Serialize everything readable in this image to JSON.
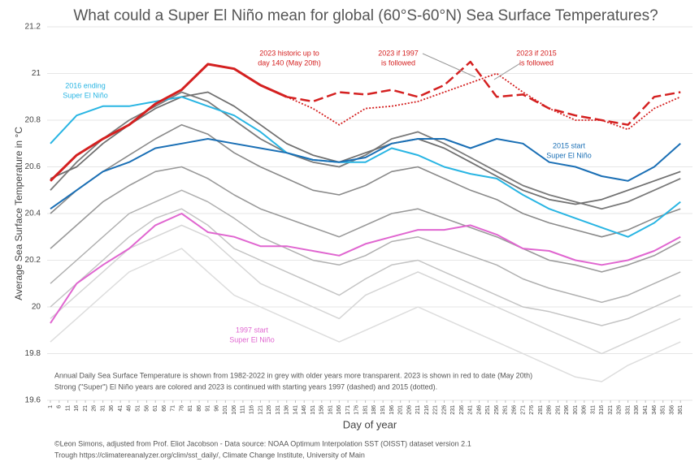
{
  "chart_data": {
    "type": "line",
    "title": "What could a Super El Niño mean for global (60°S-60°N) Sea Surface Temperatures?",
    "x_label": "Day of year",
    "y_label": "Average Sea Surface Temperature in °C",
    "x": [
      1,
      16,
      31,
      46,
      61,
      76,
      91,
      106,
      121,
      136,
      151,
      166,
      181,
      196,
      211,
      226,
      241,
      256,
      271,
      286,
      301,
      316,
      331,
      346,
      361
    ],
    "xlim": [
      1,
      366
    ],
    "xticks": [
      1,
      6,
      11,
      16,
      21,
      26,
      31,
      36,
      41,
      46,
      51,
      56,
      61,
      66,
      71,
      76,
      81,
      86,
      91,
      96,
      101,
      106,
      111,
      116,
      121,
      126,
      131,
      136,
      141,
      146,
      151,
      156,
      161,
      166,
      171,
      176,
      181,
      186,
      191,
      196,
      201,
      206,
      211,
      216,
      221,
      226,
      231,
      236,
      241,
      246,
      251,
      256,
      261,
      266,
      271,
      276,
      281,
      286,
      291,
      296,
      301,
      306,
      311,
      316,
      321,
      326,
      331,
      336,
      341,
      346,
      351,
      356,
      361
    ],
    "ylim": [
      19.6,
      21.2
    ],
    "yticks": [
      19.6,
      19.8,
      20,
      20.2,
      20.4,
      20.6,
      20.8,
      21,
      21.2
    ],
    "grid": true,
    "series": [
      {
        "color": "#dddddd",
        "width": 1.5,
        "values": [
          19.85,
          19.95,
          20.05,
          20.15,
          20.2,
          20.25,
          20.15,
          20.05,
          20.0,
          19.95,
          19.9,
          19.85,
          19.9,
          19.95,
          20.0,
          19.95,
          19.9,
          19.85,
          19.8,
          19.75,
          19.7,
          19.68,
          19.75,
          19.8,
          19.85
        ]
      },
      {
        "color": "#d5d5d5",
        "width": 1.5,
        "values": [
          19.95,
          20.05,
          20.15,
          20.25,
          20.3,
          20.35,
          20.3,
          20.2,
          20.1,
          20.05,
          20.0,
          19.95,
          20.05,
          20.1,
          20.15,
          20.1,
          20.05,
          20.0,
          19.95,
          19.9,
          19.85,
          19.8,
          19.85,
          19.9,
          19.95
        ]
      },
      {
        "color": "#c4c4c4",
        "width": 1.5,
        "values": [
          20.0,
          20.1,
          20.2,
          20.3,
          20.38,
          20.42,
          20.35,
          20.25,
          20.2,
          20.15,
          20.1,
          20.05,
          20.12,
          20.18,
          20.2,
          20.15,
          20.1,
          20.05,
          20.0,
          19.98,
          19.95,
          19.92,
          19.95,
          20.0,
          20.05
        ]
      },
      {
        "color": "#b0b0b0",
        "width": 1.5,
        "values": [
          20.1,
          20.2,
          20.3,
          20.4,
          20.45,
          20.5,
          20.45,
          20.38,
          20.3,
          20.25,
          20.2,
          20.18,
          20.22,
          20.28,
          20.3,
          20.26,
          20.22,
          20.18,
          20.12,
          20.08,
          20.05,
          20.02,
          20.05,
          20.1,
          20.15
        ]
      },
      {
        "color": "#9a9a9a",
        "width": 1.6,
        "values": [
          20.25,
          20.35,
          20.45,
          20.52,
          20.58,
          20.6,
          20.55,
          20.48,
          20.42,
          20.38,
          20.34,
          20.3,
          20.35,
          20.4,
          20.42,
          20.38,
          20.34,
          20.3,
          20.25,
          20.2,
          20.18,
          20.15,
          20.18,
          20.22,
          20.28
        ]
      },
      {
        "color": "#8a8a8a",
        "width": 1.6,
        "values": [
          20.4,
          20.5,
          20.58,
          20.65,
          20.72,
          20.78,
          20.74,
          20.66,
          20.6,
          20.55,
          20.5,
          20.48,
          20.52,
          20.58,
          20.6,
          20.55,
          20.5,
          20.46,
          20.4,
          20.36,
          20.33,
          20.3,
          20.33,
          20.38,
          20.42
        ]
      },
      {
        "color": "#7a7a7a",
        "width": 1.8,
        "values": [
          20.5,
          20.62,
          20.72,
          20.8,
          20.86,
          20.92,
          20.88,
          20.8,
          20.72,
          20.66,
          20.62,
          20.6,
          20.65,
          20.72,
          20.75,
          20.7,
          20.64,
          20.58,
          20.52,
          20.48,
          20.45,
          20.42,
          20.45,
          20.5,
          20.55
        ]
      },
      {
        "color": "#707070",
        "width": 1.8,
        "values": [
          20.55,
          20.6,
          20.7,
          20.78,
          20.85,
          20.9,
          20.92,
          20.86,
          20.78,
          20.7,
          20.65,
          20.62,
          20.66,
          20.7,
          20.72,
          20.68,
          20.62,
          20.56,
          20.5,
          20.46,
          20.44,
          20.46,
          20.5,
          20.54,
          20.58
        ]
      },
      {
        "name": "1997",
        "color": "#e066d0",
        "width": 2,
        "values": [
          19.93,
          20.1,
          20.18,
          20.25,
          20.35,
          20.4,
          20.32,
          20.3,
          20.26,
          20.26,
          20.24,
          20.22,
          20.27,
          20.3,
          20.33,
          20.33,
          20.35,
          20.31,
          20.25,
          20.24,
          20.2,
          20.18,
          20.2,
          20.24,
          20.3
        ]
      },
      {
        "name": "2016",
        "color": "#29b5e3",
        "width": 2,
        "values": [
          20.7,
          20.82,
          20.86,
          20.86,
          20.88,
          20.9,
          20.86,
          20.82,
          20.75,
          20.66,
          20.63,
          20.62,
          20.62,
          20.68,
          20.65,
          20.6,
          20.57,
          20.55,
          20.48,
          20.42,
          20.38,
          20.34,
          20.3,
          20.36,
          20.45
        ]
      },
      {
        "name": "2015",
        "color": "#1a6fb5",
        "width": 2,
        "values": [
          20.42,
          20.5,
          20.58,
          20.62,
          20.68,
          20.7,
          20.72,
          20.7,
          20.68,
          20.66,
          20.63,
          20.62,
          20.64,
          20.7,
          20.72,
          20.72,
          20.68,
          20.72,
          20.7,
          20.62,
          20.6,
          20.56,
          20.54,
          20.6,
          20.7
        ]
      },
      {
        "name": "2023 if 2015",
        "color": "#d42020",
        "width": 1.8,
        "dash": "dotted",
        "values": [
          null,
          null,
          null,
          null,
          null,
          null,
          null,
          null,
          null,
          20.9,
          20.85,
          20.78,
          20.85,
          20.86,
          20.88,
          20.92,
          20.96,
          21.0,
          20.92,
          20.85,
          20.8,
          20.8,
          20.76,
          20.85,
          20.9
        ]
      },
      {
        "name": "2023 if 1997",
        "color": "#d42020",
        "width": 2.5,
        "dash": "dashed",
        "values": [
          null,
          null,
          null,
          null,
          null,
          null,
          null,
          null,
          null,
          20.9,
          20.88,
          20.92,
          20.91,
          20.93,
          20.9,
          20.95,
          21.05,
          20.9,
          20.91,
          20.85,
          20.82,
          20.8,
          20.78,
          20.9,
          20.92
        ]
      },
      {
        "name": "2023",
        "color": "#d42020",
        "width": 3,
        "values": [
          20.54,
          20.65,
          20.72,
          20.78,
          20.87,
          20.93,
          21.04,
          21.02,
          20.95,
          20.9,
          null,
          null,
          null,
          null,
          null,
          null,
          null,
          null,
          null,
          null,
          null,
          null,
          null,
          null,
          null
        ]
      }
    ],
    "annotations": [
      {
        "lines": [
          "2023 historic up to",
          "day 140 (May 20th)"
        ],
        "color": "#d42020"
      },
      {
        "lines": [
          "2023 if 1997",
          "is followed"
        ],
        "color": "#d42020"
      },
      {
        "lines": [
          "2023 if 2015",
          "is followed"
        ],
        "color": "#d42020"
      },
      {
        "lines": [
          "2016 ending",
          "Super El Niño"
        ],
        "color": "#29b5e3"
      },
      {
        "lines": [
          "2015 start",
          "Super El Niño"
        ],
        "color": "#1a6fb5"
      },
      {
        "lines": [
          "1997 start",
          "Super El Niño"
        ],
        "color": "#e066d0"
      }
    ],
    "note": [
      "Annual Daily Sea Surface Temperature is shown from 1982-2022 in grey with older years more transparent. 2023 is shown in red to date (May 20th)",
      "Strong (\"Super\") El Niño years are colored and 2023 is continued with starting years 1997 (dashed) and 2015 (dotted)."
    ],
    "credits": [
      "©Leon Simons, adjusted from Prof. Eliot Jacobson - Data source: NOAA Optimum Interpolation SST (OISST) dataset version 2.1",
      "Trough https://climatereanalyzer.org/clim/sst_daily/, Climate Change Institute, University of Main"
    ]
  }
}
